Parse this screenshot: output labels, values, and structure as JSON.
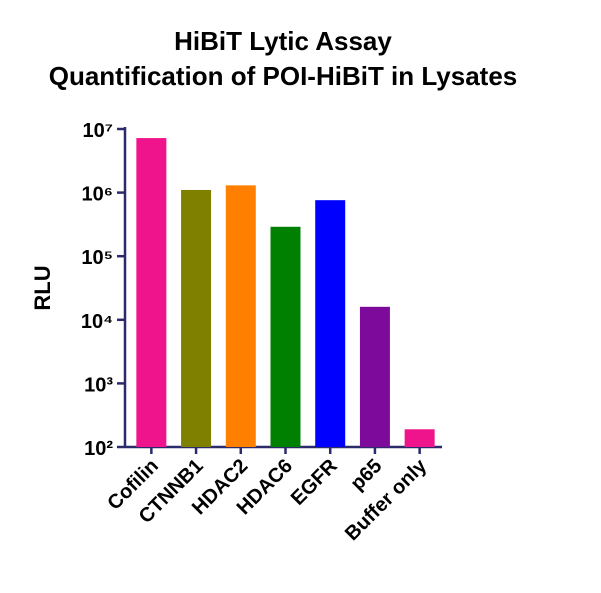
{
  "chart_data": {
    "type": "bar",
    "title": [
      "HiBiT Lytic Assay",
      "Quantification of POI-HiBiT in Lysates"
    ],
    "y_label": "RLU",
    "categories": [
      "Cofilin",
      "CTNNB1",
      "HDAC2",
      "HDAC6",
      "EGFR",
      "p65",
      "Buffer only"
    ],
    "values": [
      7200000,
      1100000,
      1300000,
      290000,
      760000,
      16000,
      190
    ],
    "colors": [
      "#f0148c",
      "#808000",
      "#ff8000",
      "#008000",
      "#0000ff",
      "#7d0a9b",
      "#f0148c"
    ],
    "log_scale": true,
    "ylim": [
      100,
      10000000
    ],
    "yticks": [
      {
        "value": 100,
        "label": "10²"
      },
      {
        "value": 1000,
        "label": "10³"
      },
      {
        "value": 10000,
        "label": "10⁴"
      },
      {
        "value": 100000,
        "label": "10⁵"
      },
      {
        "value": 1000000,
        "label": "10⁶"
      },
      {
        "value": 10000000,
        "label": "10⁷"
      }
    ]
  }
}
